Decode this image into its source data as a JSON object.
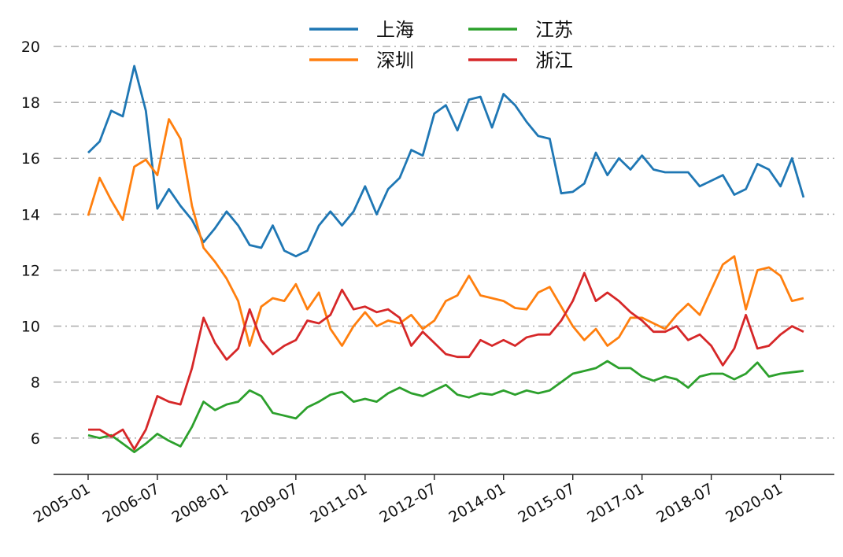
{
  "chart_data": {
    "type": "line",
    "title": "",
    "xlabel": "",
    "ylabel": "",
    "x_start": "2005-01",
    "x_step_months": 3,
    "xlim": [
      "2004-04",
      "2021-03"
    ],
    "ylim": [
      4.7,
      20.6
    ],
    "x_ticks": [
      "2005-01",
      "2006-07",
      "2008-01",
      "2009-07",
      "2011-01",
      "2012-07",
      "2014-01",
      "2015-07",
      "2017-01",
      "2018-07",
      "2020-01"
    ],
    "y_ticks": [
      6,
      8,
      10,
      12,
      14,
      16,
      18,
      20
    ],
    "grid": {
      "y": true,
      "x": false,
      "style": "dash-dot",
      "color": "#b0b0b0"
    },
    "legend_placement": "top-center",
    "series": [
      {
        "name": "上海",
        "color": "#1f77b4",
        "values": [
          16.2,
          16.6,
          17.7,
          17.5,
          19.3,
          17.7,
          14.2,
          14.9,
          14.3,
          13.8,
          13.0,
          13.5,
          14.1,
          13.6,
          12.9,
          12.8,
          13.6,
          12.7,
          12.5,
          12.7,
          13.6,
          14.1,
          13.6,
          14.1,
          15.0,
          14.0,
          14.9,
          15.3,
          16.3,
          16.1,
          17.6,
          17.9,
          17.0,
          18.1,
          18.2,
          17.1,
          18.3,
          17.9,
          17.3,
          16.8,
          16.7,
          14.75,
          14.8,
          15.1,
          16.2,
          15.4,
          16.0,
          15.6,
          16.1,
          15.6,
          15.5,
          15.5,
          15.5,
          15.0,
          15.2,
          15.4,
          14.7,
          14.9,
          15.8,
          15.6,
          15.0,
          16.0,
          14.6
        ]
      },
      {
        "name": "江苏",
        "color": "#2ca02c",
        "values": [
          6.1,
          6.0,
          6.1,
          5.8,
          5.5,
          5.8,
          6.15,
          5.9,
          5.7,
          6.4,
          7.3,
          7.0,
          7.2,
          7.3,
          7.7,
          7.5,
          6.9,
          6.8,
          6.7,
          7.1,
          7.3,
          7.55,
          7.65,
          7.3,
          7.4,
          7.3,
          7.6,
          7.8,
          7.6,
          7.5,
          7.7,
          7.9,
          7.55,
          7.45,
          7.6,
          7.55,
          7.7,
          7.55,
          7.7,
          7.6,
          7.7,
          8.0,
          8.3,
          8.4,
          8.5,
          8.75,
          8.5,
          8.5,
          8.2,
          8.05,
          8.2,
          8.1,
          7.8,
          8.2,
          8.3,
          8.3,
          8.1,
          8.3,
          8.7,
          8.2,
          8.3,
          8.35,
          8.4
        ]
      },
      {
        "name": "深圳",
        "color": "#ff7f0e",
        "values": [
          13.95,
          15.3,
          14.5,
          13.8,
          15.7,
          15.95,
          15.4,
          17.4,
          16.7,
          14.3,
          12.8,
          12.3,
          11.7,
          10.9,
          9.3,
          10.7,
          11.0,
          10.9,
          11.5,
          10.6,
          11.2,
          9.9,
          9.3,
          10.0,
          10.5,
          10.0,
          10.2,
          10.1,
          10.4,
          9.9,
          10.2,
          10.9,
          11.1,
          11.8,
          11.1,
          11.0,
          10.9,
          10.65,
          10.6,
          11.2,
          11.4,
          10.7,
          10.0,
          9.5,
          9.9,
          9.3,
          9.6,
          10.3,
          10.3,
          10.1,
          9.9,
          10.4,
          10.8,
          10.4,
          11.3,
          12.2,
          12.5,
          10.6,
          12.0,
          12.1,
          11.8,
          10.9,
          11.0
        ]
      },
      {
        "name": "浙江",
        "color": "#d62728",
        "values": [
          6.3,
          6.3,
          6.05,
          6.3,
          5.6,
          6.3,
          7.5,
          7.3,
          7.2,
          8.5,
          10.3,
          9.4,
          8.8,
          9.2,
          10.6,
          9.5,
          9.0,
          9.3,
          9.5,
          10.2,
          10.1,
          10.4,
          11.3,
          10.6,
          10.7,
          10.5,
          10.6,
          10.3,
          9.3,
          9.8,
          9.4,
          9.0,
          8.9,
          8.9,
          9.5,
          9.3,
          9.5,
          9.3,
          9.6,
          9.7,
          9.7,
          10.2,
          10.9,
          11.9,
          10.9,
          11.2,
          10.9,
          10.5,
          10.2,
          9.8,
          9.8,
          10.0,
          9.5,
          9.7,
          9.3,
          8.6,
          9.2,
          10.4,
          9.2,
          9.3,
          9.7,
          10.0,
          9.8
        ]
      }
    ]
  }
}
